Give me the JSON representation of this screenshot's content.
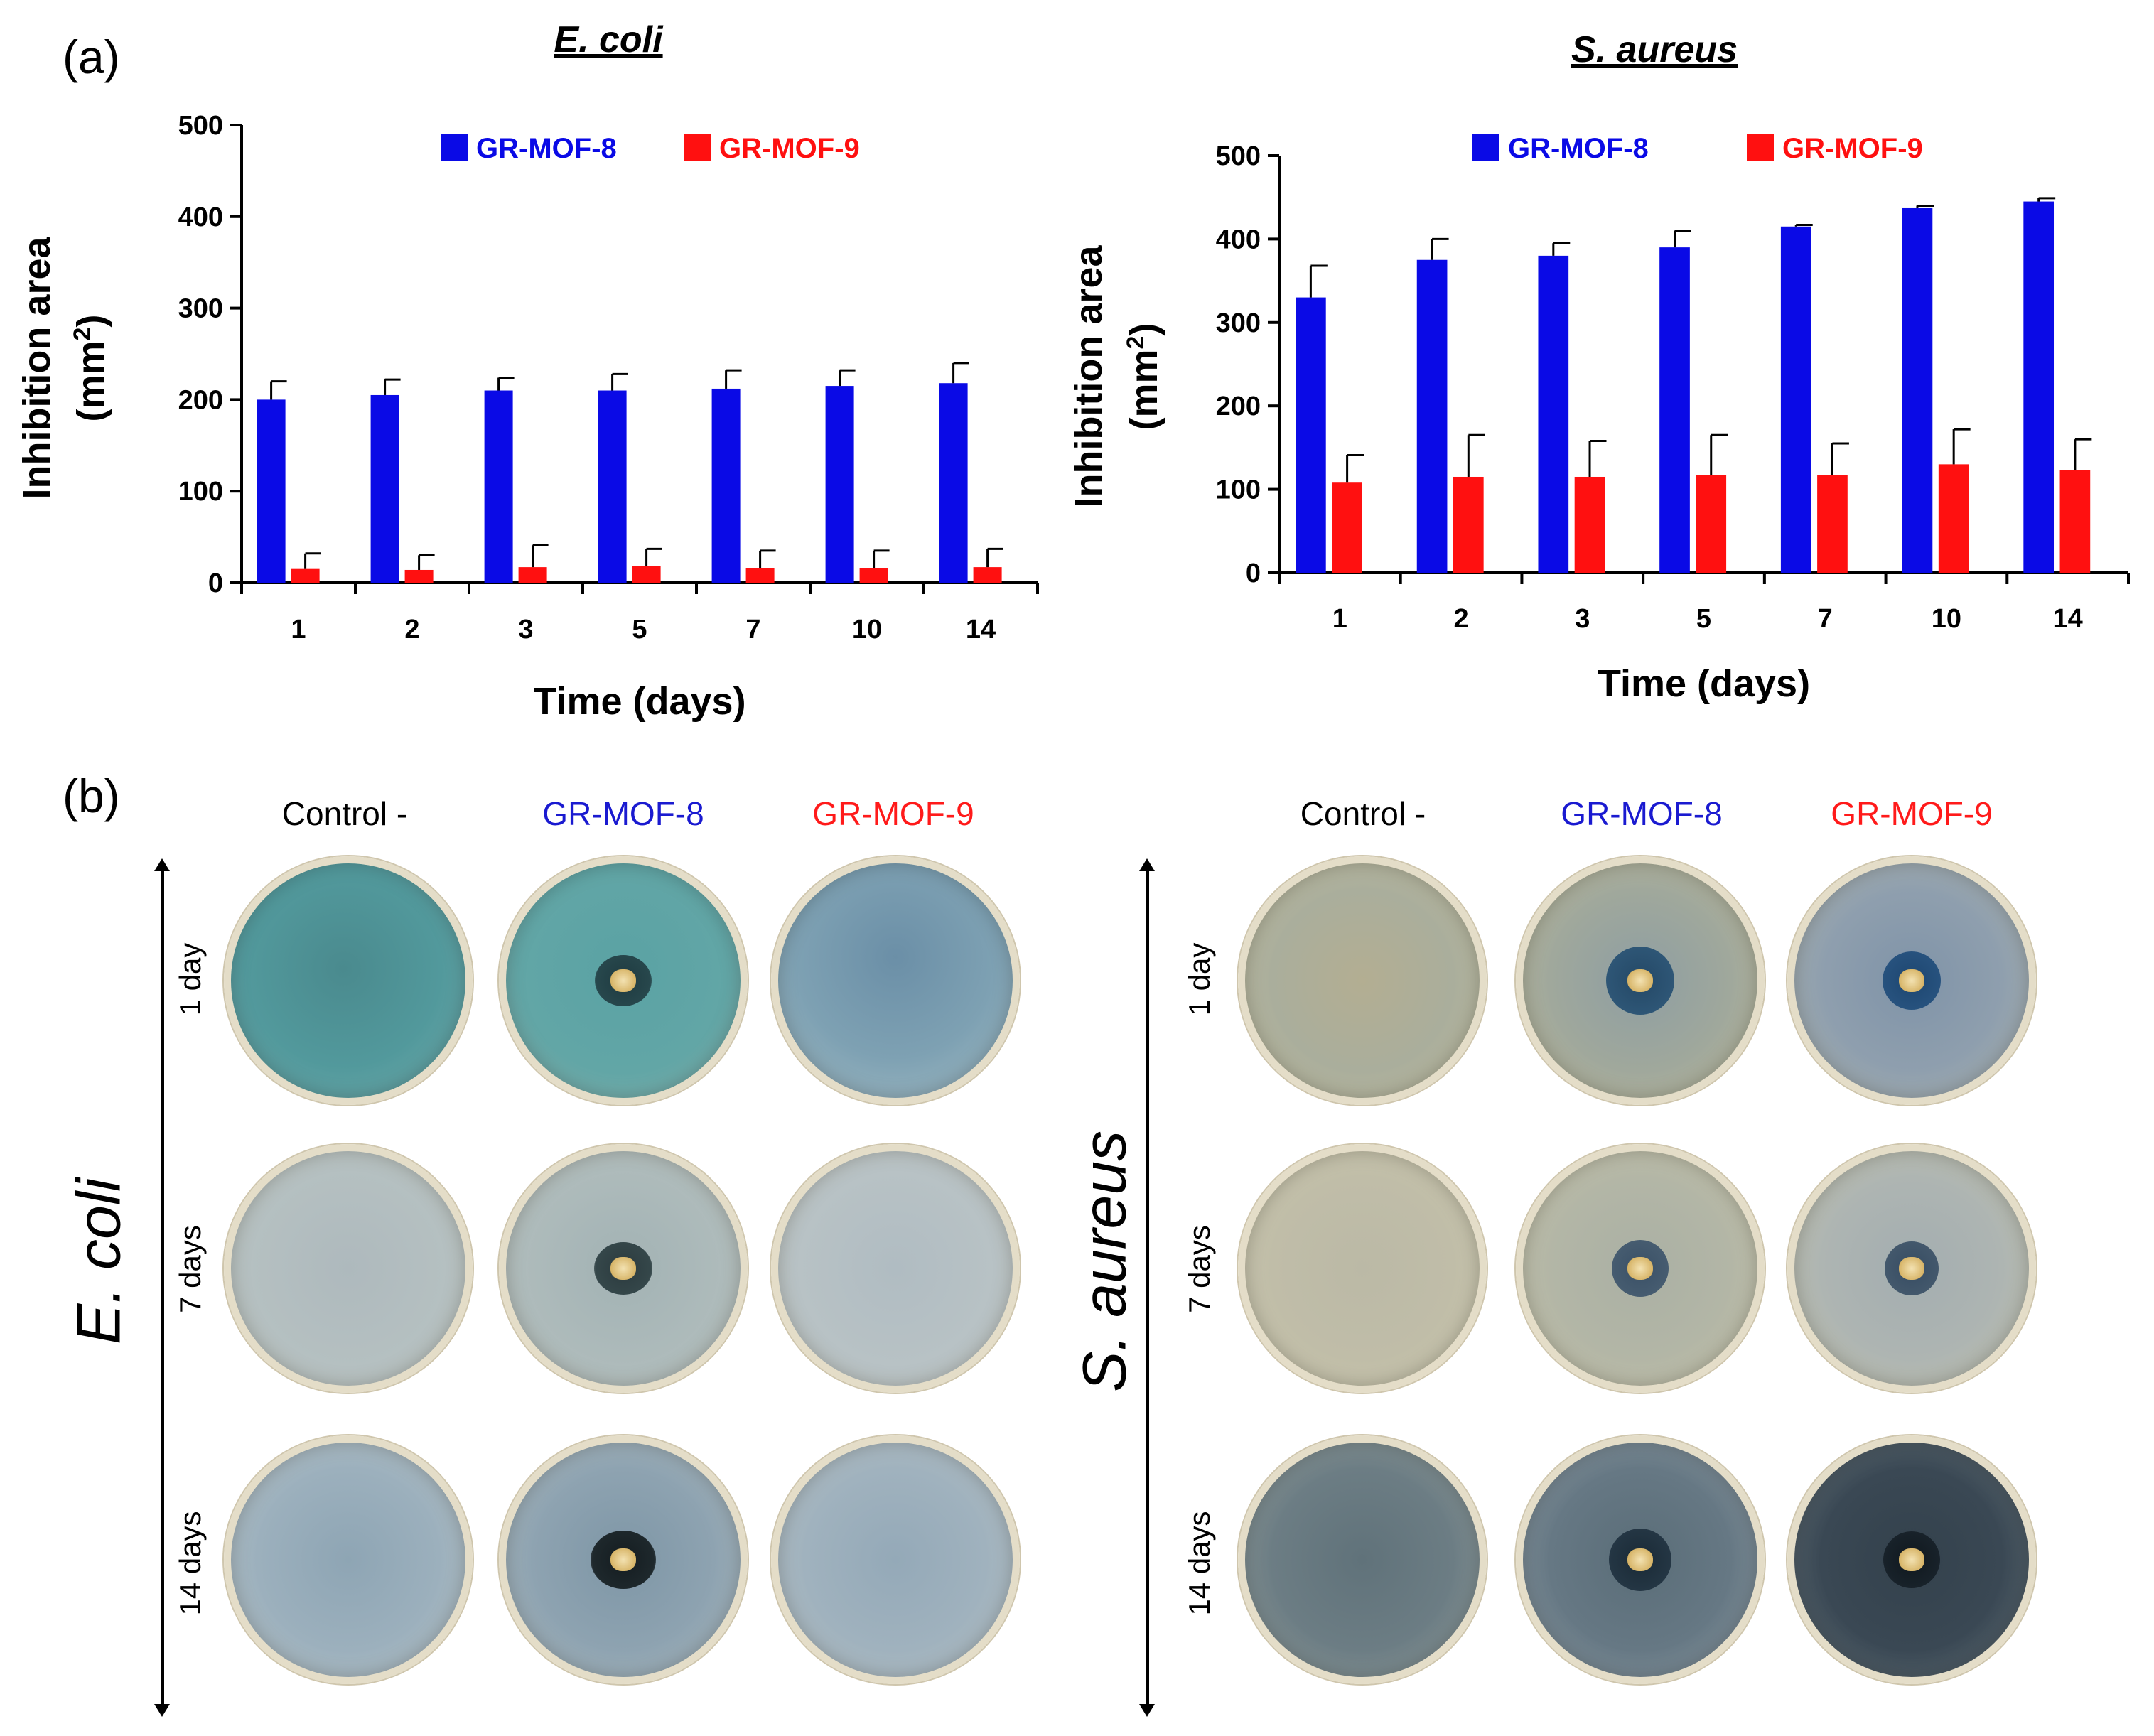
{
  "panel_a_label": "(a)",
  "panel_b_label": "(b)",
  "colors": {
    "gr_mof_8": "#0a0ae6",
    "gr_mof_9": "#ff1010"
  },
  "chart_data": [
    {
      "type": "bar",
      "title": "E. coli",
      "categories": [
        "1",
        "2",
        "3",
        "5",
        "7",
        "10",
        "14"
      ],
      "series": [
        {
          "name": "GR-MOF-8",
          "values": [
            200,
            205,
            210,
            210,
            212,
            215,
            218
          ],
          "errors": [
            20,
            17,
            14,
            18,
            20,
            17,
            22
          ]
        },
        {
          "name": "GR-MOF-9",
          "values": [
            15,
            14,
            17,
            18,
            16,
            16,
            17
          ],
          "errors": [
            17,
            16,
            24,
            19,
            19,
            19,
            20
          ]
        }
      ],
      "xlabel": "Time (days)",
      "ylabel_line1": "Inhibition area",
      "ylabel_line2": "(mm",
      "ylabel_sup": "2",
      "ylabel_end": ")",
      "ylim": [
        0,
        500
      ],
      "yticks": [
        "0",
        "100",
        "200",
        "300",
        "400",
        "500"
      ],
      "legend": "top"
    },
    {
      "type": "bar",
      "title": "S. aureus",
      "categories": [
        "1",
        "2",
        "3",
        "5",
        "7",
        "10",
        "14"
      ],
      "series": [
        {
          "name": "GR-MOF-8",
          "values": [
            330,
            375,
            380,
            390,
            415,
            437,
            445
          ],
          "errors": [
            38,
            25,
            15,
            20,
            2,
            3,
            4
          ]
        },
        {
          "name": "GR-MOF-9",
          "values": [
            108,
            115,
            115,
            117,
            117,
            130,
            123
          ],
          "errors": [
            33,
            50,
            43,
            48,
            38,
            42,
            37
          ]
        }
      ],
      "xlabel": "Time (days)",
      "ylabel_line1": "Inhibition area",
      "ylabel_line2": "(mm",
      "ylabel_sup": "2",
      "ylabel_end": ")",
      "ylim": [
        0,
        500
      ],
      "yticks": [
        "0",
        "100",
        "200",
        "300",
        "400",
        "500"
      ],
      "legend": "top"
    }
  ],
  "photos": {
    "columns": [
      "Control -",
      "GR-MOF-8",
      "GR-MOF-9"
    ],
    "organisms": [
      "E. coli",
      "S. aureus"
    ],
    "times": [
      "1 day",
      "7 days",
      "14 days"
    ]
  }
}
